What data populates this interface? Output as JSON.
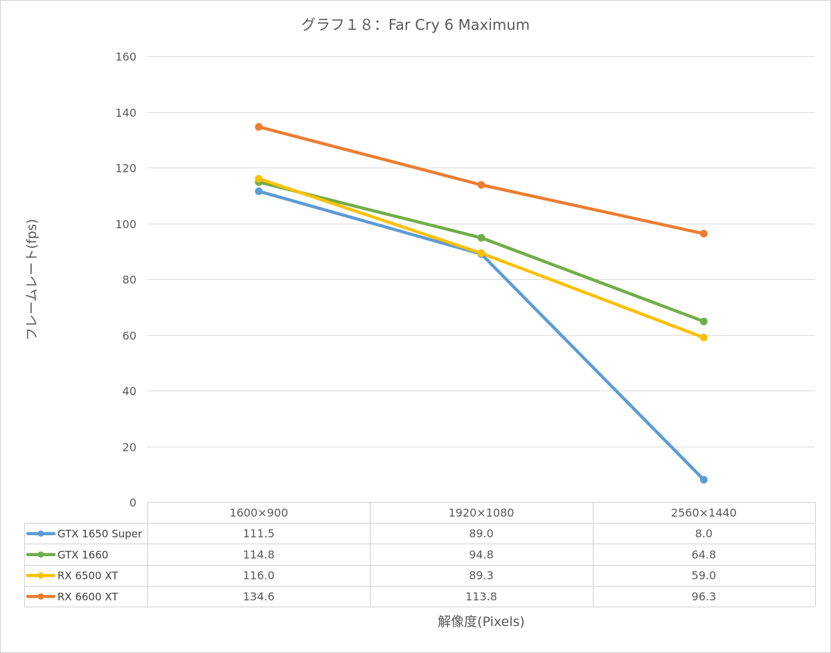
{
  "chart_data": {
    "type": "line",
    "title": "グラフ１８：Far Cry 6 Maximum",
    "xlabel": "解像度(Pixels)",
    "ylabel": "フレームレート(fps)",
    "categories": [
      "1600×900",
      "1920×1080",
      "2560×1440"
    ],
    "ylim": [
      0,
      160
    ],
    "yticks": [
      0,
      20,
      40,
      60,
      80,
      100,
      120,
      140,
      160
    ],
    "grid": true,
    "legend": "data-table",
    "series": [
      {
        "name": "GTX 1650 Super",
        "color": "#5b9bd5",
        "values": [
          111.5,
          89.0,
          8.0
        ],
        "labels": [
          "111.5",
          "89.0",
          "8.0"
        ]
      },
      {
        "name": "GTX 1660",
        "color": "#70ad47",
        "values": [
          114.8,
          94.8,
          64.8
        ],
        "labels": [
          "114.8",
          "94.8",
          "64.8"
        ]
      },
      {
        "name": "RX 6500 XT",
        "color": "#ffc000",
        "values": [
          116.0,
          89.3,
          59.0
        ],
        "labels": [
          "116.0",
          "89.3",
          "59.0"
        ]
      },
      {
        "name": "RX 6600 XT",
        "color": "#ed7d31",
        "values": [
          134.6,
          113.8,
          96.3
        ],
        "labels": [
          "134.6",
          "113.8",
          "96.3"
        ]
      }
    ]
  }
}
